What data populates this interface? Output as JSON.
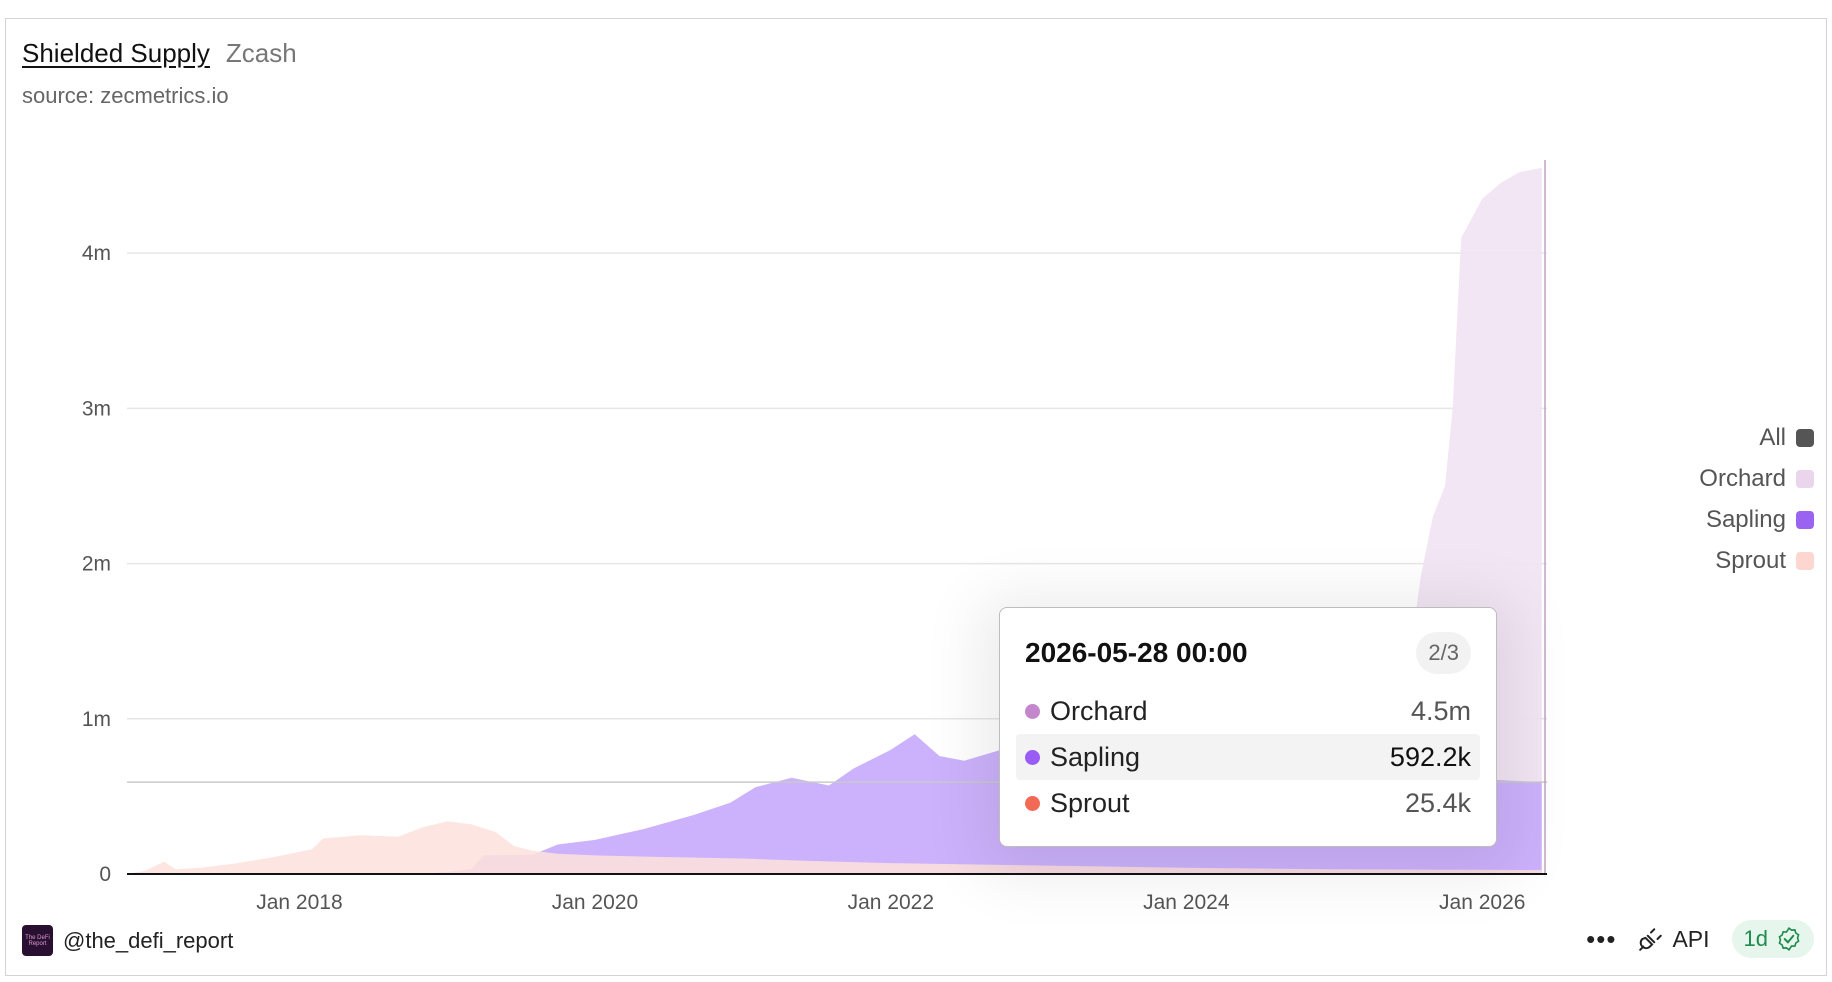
{
  "header": {
    "title": "Shielded Supply",
    "subtitle": "Zcash",
    "source": "source: zecmetrics.io"
  },
  "legend": [
    {
      "label": "All",
      "color": "#555555"
    },
    {
      "label": "Orchard",
      "color": "#ead5ec"
    },
    {
      "label": "Sapling",
      "color": "#9a63f0"
    },
    {
      "label": "Sprout",
      "color": "#fdd6cf"
    }
  ],
  "tooltip": {
    "date": "2026-05-28 00:00",
    "page": "2/3",
    "rows": [
      {
        "label": "Orchard",
        "value": "4.5m",
        "color": "#c587cc"
      },
      {
        "label": "Sapling",
        "value": "592.2k",
        "color": "#9a5cf6"
      },
      {
        "label": "Sprout",
        "value": "25.4k",
        "color": "#f26a55"
      }
    ]
  },
  "footer": {
    "handle": "@the_defi_report",
    "avatar_text": "The DeFi Report",
    "more_icon": "ellipsis-icon",
    "api_label": "API",
    "api_icon": "plug-icon",
    "frequency": "1d",
    "frequency_icon": "verified-badge-icon"
  },
  "chart_data": {
    "type": "area",
    "stacked": false,
    "x_ticks": [
      "Jan 2018",
      "Jan 2020",
      "Jan 2022",
      "Jan 2024",
      "Jan 2026"
    ],
    "y_ticks": [
      "0",
      "1m",
      "2m",
      "3m",
      "4m"
    ],
    "ylim": [
      0,
      4600000
    ],
    "xlim": [
      "2016-11-01",
      "2026-06-10"
    ],
    "grid": true,
    "legend_position": "right",
    "crosshair_y": 592200,
    "series": [
      {
        "name": "Sprout",
        "color": "#fde2dc",
        "points": [
          [
            "2016-11-01",
            0
          ],
          [
            "2016-12-15",
            20000
          ],
          [
            "2017-02-01",
            80000
          ],
          [
            "2017-03-01",
            30000
          ],
          [
            "2017-05-01",
            40000
          ],
          [
            "2017-08-01",
            70000
          ],
          [
            "2017-11-01",
            110000
          ],
          [
            "2018-02-01",
            160000
          ],
          [
            "2018-03-01",
            230000
          ],
          [
            "2018-06-01",
            250000
          ],
          [
            "2018-09-01",
            240000
          ],
          [
            "2018-11-01",
            300000
          ],
          [
            "2019-01-01",
            340000
          ],
          [
            "2019-03-01",
            320000
          ],
          [
            "2019-05-01",
            270000
          ],
          [
            "2019-06-15",
            180000
          ],
          [
            "2019-08-01",
            150000
          ],
          [
            "2019-10-01",
            130000
          ],
          [
            "2020-01-01",
            120000
          ],
          [
            "2020-06-01",
            110000
          ],
          [
            "2021-01-01",
            100000
          ],
          [
            "2021-06-01",
            85000
          ],
          [
            "2022-01-01",
            70000
          ],
          [
            "2023-01-01",
            55000
          ],
          [
            "2024-01-01",
            40000
          ],
          [
            "2025-01-01",
            30000
          ],
          [
            "2026-05-28",
            25400
          ]
        ]
      },
      {
        "name": "Sapling",
        "color": "#c9aefc",
        "points": [
          [
            "2018-10-28",
            0
          ],
          [
            "2019-01-01",
            15000
          ],
          [
            "2019-03-01",
            30000
          ],
          [
            "2019-04-01",
            120000
          ],
          [
            "2019-08-01",
            125000
          ],
          [
            "2019-10-01",
            190000
          ],
          [
            "2020-01-01",
            220000
          ],
          [
            "2020-05-01",
            290000
          ],
          [
            "2020-09-01",
            380000
          ],
          [
            "2020-12-01",
            460000
          ],
          [
            "2021-02-01",
            560000
          ],
          [
            "2021-05-01",
            620000
          ],
          [
            "2021-08-01",
            570000
          ],
          [
            "2021-10-01",
            680000
          ],
          [
            "2022-01-01",
            800000
          ],
          [
            "2022-03-01",
            900000
          ],
          [
            "2022-05-01",
            760000
          ],
          [
            "2022-07-01",
            730000
          ],
          [
            "2022-10-01",
            800000
          ],
          [
            "2023-01-01",
            760000
          ],
          [
            "2023-06-01",
            780000
          ],
          [
            "2024-01-01",
            700000
          ],
          [
            "2024-06-01",
            660000
          ],
          [
            "2025-01-01",
            640000
          ],
          [
            "2025-06-01",
            620000
          ],
          [
            "2026-01-01",
            610000
          ],
          [
            "2026-05-28",
            592200
          ]
        ]
      },
      {
        "name": "Orchard",
        "color": "#f1e4f3",
        "points": [
          [
            "2022-05-31",
            0
          ],
          [
            "2023-01-01",
            20000
          ],
          [
            "2024-01-01",
            60000
          ],
          [
            "2025-01-01",
            180000
          ],
          [
            "2025-04-01",
            260000
          ],
          [
            "2025-06-01",
            700000
          ],
          [
            "2025-08-01",
            1900000
          ],
          [
            "2025-09-01",
            2300000
          ],
          [
            "2025-10-01",
            2500000
          ],
          [
            "2025-10-20",
            3000000
          ],
          [
            "2025-11-10",
            4100000
          ],
          [
            "2025-12-01",
            4200000
          ],
          [
            "2026-01-01",
            4350000
          ],
          [
            "2026-02-15",
            4450000
          ],
          [
            "2026-04-01",
            4520000
          ],
          [
            "2026-05-28",
            4550000
          ]
        ]
      }
    ]
  }
}
